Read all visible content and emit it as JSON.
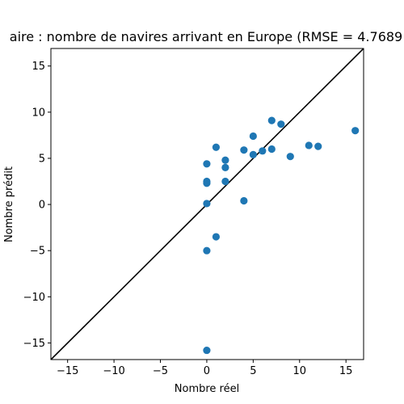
{
  "chart_data": {
    "type": "scatter",
    "title": "aire : nombre de navires arrivant en Europe (RMSE = 4.7689",
    "xlabel": "Nombre réel",
    "ylabel": "Nombre prédit",
    "xlim": [
      -16.8,
      16.9
    ],
    "ylim": [
      -16.8,
      16.9
    ],
    "xticks": [
      -15,
      -10,
      -5,
      0,
      5,
      10,
      15
    ],
    "yticks": [
      -15,
      -10,
      -5,
      0,
      5,
      10,
      15
    ],
    "xtick_labels": [
      "−15",
      "−10",
      "−5",
      "0",
      "5",
      "10",
      "15"
    ],
    "ytick_labels": [
      "−15",
      "−10",
      "−5",
      "0",
      "5",
      "10",
      "15"
    ],
    "grid": false,
    "point_color": "#1f77b4",
    "reference_line": {
      "from": [
        -16.8,
        -16.8
      ],
      "to": [
        16.9,
        16.9
      ],
      "color": "#000000"
    },
    "points": [
      {
        "x": 0,
        "y": -15.8
      },
      {
        "x": 0,
        "y": -5.0
      },
      {
        "x": 0,
        "y": 0.1
      },
      {
        "x": 0,
        "y": 2.3
      },
      {
        "x": 0,
        "y": 2.5
      },
      {
        "x": 0,
        "y": 4.4
      },
      {
        "x": 1,
        "y": -3.5
      },
      {
        "x": 1,
        "y": 6.2
      },
      {
        "x": 2,
        "y": 2.5
      },
      {
        "x": 2,
        "y": 4.0
      },
      {
        "x": 2,
        "y": 4.8
      },
      {
        "x": 4,
        "y": 0.4
      },
      {
        "x": 4,
        "y": 5.9
      },
      {
        "x": 5,
        "y": 5.4
      },
      {
        "x": 5,
        "y": 7.4
      },
      {
        "x": 6,
        "y": 5.8
      },
      {
        "x": 7,
        "y": 6.0
      },
      {
        "x": 7,
        "y": 9.1
      },
      {
        "x": 8,
        "y": 8.7
      },
      {
        "x": 9,
        "y": 5.2
      },
      {
        "x": 11,
        "y": 6.4
      },
      {
        "x": 12,
        "y": 6.3
      },
      {
        "x": 16,
        "y": 8.0
      }
    ]
  }
}
